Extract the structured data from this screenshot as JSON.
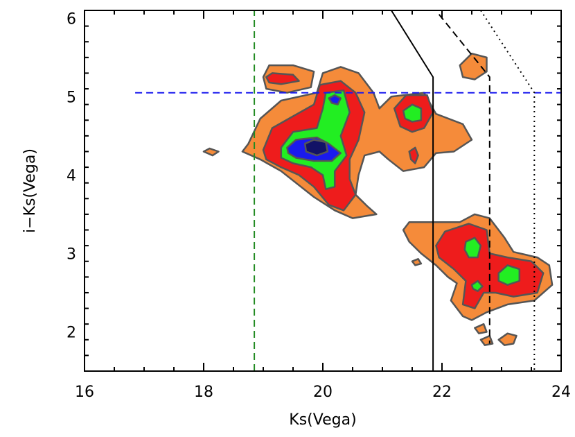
{
  "chart_data": {
    "type": "contour",
    "xlabel": "Ks(Vega)",
    "ylabel": "i−Ks(Vega)",
    "xlim": [
      16,
      24
    ],
    "ylim": [
      1.5,
      6.1
    ],
    "xticks": [
      "16",
      "18",
      "20",
      "22",
      "24"
    ],
    "yticks": [
      "2",
      "3",
      "4",
      "5",
      "6"
    ],
    "grid": false,
    "levels": [
      {
        "name": "level-1",
        "color": "#f58b3a"
      },
      {
        "name": "level-2",
        "color": "#ee1c1c"
      },
      {
        "name": "level-3",
        "color": "#22ee22"
      },
      {
        "name": "level-4",
        "color": "#1a1aee"
      },
      {
        "name": "level-5",
        "color": "#121266"
      }
    ],
    "contours": [
      {
        "level": 0,
        "points": [
          [
            18.75,
            4.4
          ],
          [
            18.95,
            4.72
          ],
          [
            19.3,
            4.95
          ],
          [
            19.9,
            5.05
          ],
          [
            20.0,
            5.3
          ],
          [
            20.3,
            5.38
          ],
          [
            20.6,
            5.3
          ],
          [
            20.85,
            5.05
          ],
          [
            20.95,
            4.85
          ],
          [
            21.15,
            5.0
          ],
          [
            21.7,
            5.05
          ],
          [
            21.9,
            4.78
          ],
          [
            22.35,
            4.65
          ],
          [
            22.5,
            4.45
          ],
          [
            22.2,
            4.3
          ],
          [
            21.9,
            4.28
          ],
          [
            21.7,
            4.1
          ],
          [
            21.35,
            4.05
          ],
          [
            21.1,
            4.2
          ],
          [
            20.95,
            4.3
          ],
          [
            20.7,
            4.25
          ],
          [
            20.6,
            4.0
          ],
          [
            20.55,
            3.75
          ],
          [
            20.75,
            3.6
          ],
          [
            20.9,
            3.5
          ],
          [
            20.5,
            3.45
          ],
          [
            20.2,
            3.55
          ],
          [
            19.85,
            3.72
          ],
          [
            19.55,
            3.9
          ],
          [
            19.3,
            4.05
          ],
          [
            18.95,
            4.2
          ],
          [
            18.65,
            4.3
          ]
        ]
      },
      {
        "level": 0,
        "points": [
          [
            19.0,
            5.25
          ],
          [
            19.1,
            5.4
          ],
          [
            19.5,
            5.4
          ],
          [
            19.85,
            5.32
          ],
          [
            19.8,
            5.12
          ],
          [
            19.4,
            5.05
          ],
          [
            19.05,
            5.1
          ]
        ]
      },
      {
        "level": 0,
        "points": [
          [
            18.0,
            4.3
          ],
          [
            18.1,
            4.34
          ],
          [
            18.25,
            4.3
          ],
          [
            18.15,
            4.25
          ]
        ]
      },
      {
        "level": 0,
        "points": [
          [
            22.3,
            5.4
          ],
          [
            22.5,
            5.55
          ],
          [
            22.75,
            5.5
          ],
          [
            22.75,
            5.32
          ],
          [
            22.55,
            5.22
          ],
          [
            22.35,
            5.25
          ]
        ]
      },
      {
        "level": 0,
        "points": [
          [
            21.35,
            3.3
          ],
          [
            21.45,
            3.4
          ],
          [
            21.9,
            3.4
          ],
          [
            22.3,
            3.4
          ],
          [
            22.55,
            3.5
          ],
          [
            22.8,
            3.45
          ],
          [
            23.05,
            3.2
          ],
          [
            23.2,
            3.02
          ],
          [
            23.6,
            2.95
          ],
          [
            23.8,
            2.85
          ],
          [
            23.85,
            2.6
          ],
          [
            23.55,
            2.4
          ],
          [
            23.1,
            2.35
          ],
          [
            22.75,
            2.25
          ],
          [
            22.5,
            2.15
          ],
          [
            22.35,
            2.2
          ],
          [
            22.15,
            2.4
          ],
          [
            22.25,
            2.62
          ],
          [
            22.1,
            2.7
          ],
          [
            21.9,
            2.85
          ],
          [
            21.65,
            3.0
          ],
          [
            21.45,
            3.15
          ]
        ]
      },
      {
        "level": 0,
        "points": [
          [
            21.5,
            2.9
          ],
          [
            21.6,
            2.93
          ],
          [
            21.65,
            2.87
          ],
          [
            21.55,
            2.85
          ]
        ]
      },
      {
        "level": 0,
        "points": [
          [
            22.55,
            2.05
          ],
          [
            22.7,
            2.1
          ],
          [
            22.75,
            2.0
          ],
          [
            22.62,
            1.98
          ]
        ]
      },
      {
        "level": 0,
        "points": [
          [
            22.65,
            1.9
          ],
          [
            22.8,
            1.95
          ],
          [
            22.85,
            1.85
          ],
          [
            22.72,
            1.83
          ]
        ]
      },
      {
        "level": 0,
        "points": [
          [
            22.95,
            1.9
          ],
          [
            23.1,
            1.98
          ],
          [
            23.25,
            1.95
          ],
          [
            23.2,
            1.85
          ],
          [
            23.05,
            1.83
          ]
        ]
      },
      {
        "level": 1,
        "points": [
          [
            19.0,
            4.32
          ],
          [
            19.15,
            4.6
          ],
          [
            19.5,
            4.75
          ],
          [
            19.85,
            4.9
          ],
          [
            19.95,
            5.15
          ],
          [
            20.3,
            5.2
          ],
          [
            20.55,
            5.05
          ],
          [
            20.7,
            4.8
          ],
          [
            20.6,
            4.45
          ],
          [
            20.45,
            4.2
          ],
          [
            20.45,
            3.95
          ],
          [
            20.55,
            3.75
          ],
          [
            20.35,
            3.55
          ],
          [
            20.1,
            3.62
          ],
          [
            19.85,
            3.85
          ],
          [
            19.6,
            4.0
          ],
          [
            19.3,
            4.1
          ],
          [
            19.05,
            4.2
          ]
        ]
      },
      {
        "level": 1,
        "points": [
          [
            19.05,
            5.25
          ],
          [
            19.15,
            5.3
          ],
          [
            19.5,
            5.28
          ],
          [
            19.6,
            5.2
          ],
          [
            19.3,
            5.16
          ],
          [
            19.1,
            5.18
          ]
        ]
      },
      {
        "level": 1,
        "points": [
          [
            21.2,
            4.85
          ],
          [
            21.4,
            5.02
          ],
          [
            21.75,
            5.02
          ],
          [
            21.85,
            4.8
          ],
          [
            21.7,
            4.6
          ],
          [
            21.5,
            4.55
          ],
          [
            21.3,
            4.62
          ]
        ]
      },
      {
        "level": 1,
        "points": [
          [
            21.45,
            4.3
          ],
          [
            21.55,
            4.35
          ],
          [
            21.6,
            4.25
          ],
          [
            21.55,
            4.15
          ],
          [
            21.48,
            4.2
          ]
        ]
      },
      {
        "level": 1,
        "points": [
          [
            21.9,
            3.1
          ],
          [
            22.05,
            3.28
          ],
          [
            22.45,
            3.38
          ],
          [
            22.75,
            3.3
          ],
          [
            22.8,
            3.0
          ],
          [
            23.1,
            2.95
          ],
          [
            23.5,
            2.9
          ],
          [
            23.7,
            2.75
          ],
          [
            23.6,
            2.5
          ],
          [
            23.2,
            2.45
          ],
          [
            22.9,
            2.5
          ],
          [
            22.7,
            2.5
          ],
          [
            22.55,
            2.3
          ],
          [
            22.35,
            2.35
          ],
          [
            22.4,
            2.65
          ],
          [
            22.2,
            2.8
          ],
          [
            21.95,
            2.95
          ]
        ]
      },
      {
        "level": 2,
        "points": [
          [
            19.3,
            4.35
          ],
          [
            19.5,
            4.55
          ],
          [
            19.9,
            4.6
          ],
          [
            20.0,
            4.85
          ],
          [
            20.05,
            5.05
          ],
          [
            20.35,
            5.08
          ],
          [
            20.45,
            4.8
          ],
          [
            20.3,
            4.5
          ],
          [
            20.4,
            4.25
          ],
          [
            20.2,
            4.05
          ],
          [
            20.2,
            3.85
          ],
          [
            20.05,
            3.82
          ],
          [
            20.0,
            4.0
          ],
          [
            19.8,
            4.1
          ],
          [
            19.5,
            4.15
          ],
          [
            19.3,
            4.22
          ]
        ]
      },
      {
        "level": 2,
        "points": [
          [
            21.35,
            4.82
          ],
          [
            21.5,
            4.9
          ],
          [
            21.65,
            4.85
          ],
          [
            21.65,
            4.7
          ],
          [
            21.5,
            4.68
          ],
          [
            21.38,
            4.72
          ]
        ]
      },
      {
        "level": 2,
        "points": [
          [
            22.4,
            3.15
          ],
          [
            22.55,
            3.2
          ],
          [
            22.65,
            3.1
          ],
          [
            22.6,
            2.95
          ],
          [
            22.45,
            2.95
          ],
          [
            22.38,
            3.05
          ]
        ]
      },
      {
        "level": 2,
        "points": [
          [
            22.95,
            2.75
          ],
          [
            23.1,
            2.85
          ],
          [
            23.3,
            2.8
          ],
          [
            23.3,
            2.65
          ],
          [
            23.1,
            2.6
          ],
          [
            22.95,
            2.65
          ]
        ]
      },
      {
        "level": 2,
        "points": [
          [
            22.5,
            2.6
          ],
          [
            22.6,
            2.65
          ],
          [
            22.68,
            2.58
          ],
          [
            22.6,
            2.52
          ],
          [
            22.52,
            2.55
          ]
        ]
      },
      {
        "level": 3,
        "points": [
          [
            19.4,
            4.35
          ],
          [
            19.55,
            4.45
          ],
          [
            19.9,
            4.48
          ],
          [
            20.1,
            4.4
          ],
          [
            20.3,
            4.28
          ],
          [
            20.15,
            4.18
          ],
          [
            19.85,
            4.18
          ],
          [
            19.55,
            4.22
          ],
          [
            19.42,
            4.28
          ]
        ]
      },
      {
        "level": 3,
        "points": [
          [
            20.1,
            4.98
          ],
          [
            20.2,
            5.02
          ],
          [
            20.3,
            4.98
          ],
          [
            20.25,
            4.9
          ],
          [
            20.15,
            4.92
          ]
        ]
      },
      {
        "level": 4,
        "points": [
          [
            19.7,
            4.4
          ],
          [
            19.85,
            4.45
          ],
          [
            20.05,
            4.42
          ],
          [
            20.08,
            4.3
          ],
          [
            19.9,
            4.25
          ],
          [
            19.72,
            4.3
          ]
        ]
      }
    ],
    "lines": [
      {
        "name": "green-dashed-line",
        "color": "#228b22",
        "style": "dashed",
        "points": [
          [
            18.85,
            1.5
          ],
          [
            18.85,
            6.1
          ]
        ]
      },
      {
        "name": "blue-dashed-line",
        "color": "#1a1aee",
        "style": "dashed",
        "points": [
          [
            16.85,
            5.05
          ],
          [
            24.0,
            5.05
          ]
        ]
      },
      {
        "name": "solid-limit-line",
        "color": "#000000",
        "style": "solid",
        "points": [
          [
            21.15,
            6.1
          ],
          [
            21.85,
            5.25
          ],
          [
            21.85,
            1.5
          ]
        ]
      },
      {
        "name": "dashed-limit-line",
        "color": "#000000",
        "style": "dashed",
        "points": [
          [
            21.95,
            6.05
          ],
          [
            22.8,
            5.25
          ],
          [
            22.8,
            1.85
          ]
        ]
      },
      {
        "name": "dotted-limit-line",
        "color": "#000000",
        "style": "dotted",
        "points": [
          [
            22.65,
            6.1
          ],
          [
            23.55,
            5.05
          ],
          [
            23.55,
            1.5
          ]
        ]
      }
    ]
  }
}
